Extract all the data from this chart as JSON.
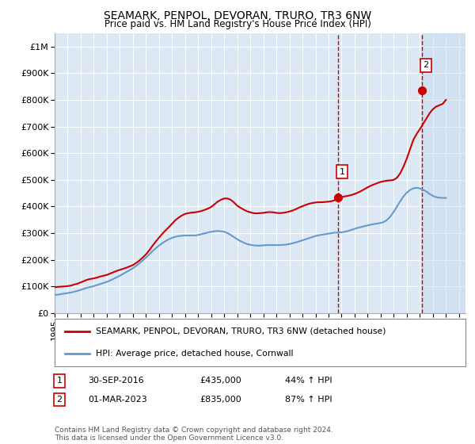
{
  "title": "SEAMARK, PENPOL, DEVORAN, TRURO, TR3 6NW",
  "subtitle": "Price paid vs. HM Land Registry's House Price Index (HPI)",
  "ylim": [
    0,
    1050000
  ],
  "xlim_start": 1995.0,
  "xlim_end": 2026.5,
  "yticks": [
    0,
    100000,
    200000,
    300000,
    400000,
    500000,
    600000,
    700000,
    800000,
    900000,
    1000000
  ],
  "ytick_labels": [
    "£0",
    "£100K",
    "£200K",
    "£300K",
    "£400K",
    "£500K",
    "£600K",
    "£700K",
    "£800K",
    "£900K",
    "£1M"
  ],
  "xticks": [
    1995,
    1996,
    1997,
    1998,
    1999,
    2000,
    2001,
    2002,
    2003,
    2004,
    2005,
    2006,
    2007,
    2008,
    2009,
    2010,
    2011,
    2012,
    2013,
    2014,
    2015,
    2016,
    2017,
    2018,
    2019,
    2020,
    2021,
    2022,
    2023,
    2024,
    2025,
    2026
  ],
  "red_line_color": "#cc0000",
  "blue_line_color": "#6699cc",
  "background_color": "#ffffff",
  "plot_bg_color": "#dce9f5",
  "shaded_region_color": "#c5d8ef",
  "marker1_x": 2016.75,
  "marker1_y": 435000,
  "marker1_label": "1",
  "marker1_date": "30-SEP-2016",
  "marker1_price": "£435,000",
  "marker1_hpi": "44% ↑ HPI",
  "marker2_x": 2023.17,
  "marker2_y": 835000,
  "marker2_label": "2",
  "marker2_date": "01-MAR-2023",
  "marker2_price": "£835,000",
  "marker2_hpi": "87% ↑ HPI",
  "legend_label_red": "SEAMARK, PENPOL, DEVORAN, TRURO, TR3 6NW (detached house)",
  "legend_label_blue": "HPI: Average price, detached house, Cornwall",
  "footer_text": "Contains HM Land Registry data © Crown copyright and database right 2024.\nThis data is licensed under the Open Government Licence v3.0.",
  "red_x": [
    1995.0,
    1995.25,
    1995.5,
    1995.75,
    1996.0,
    1996.25,
    1996.5,
    1996.75,
    1997.0,
    1997.25,
    1997.5,
    1997.75,
    1998.0,
    1998.25,
    1998.5,
    1998.75,
    1999.0,
    1999.25,
    1999.5,
    1999.75,
    2000.0,
    2000.25,
    2000.5,
    2000.75,
    2001.0,
    2001.25,
    2001.5,
    2001.75,
    2002.0,
    2002.25,
    2002.5,
    2002.75,
    2003.0,
    2003.25,
    2003.5,
    2003.75,
    2004.0,
    2004.25,
    2004.5,
    2004.75,
    2005.0,
    2005.25,
    2005.5,
    2005.75,
    2006.0,
    2006.25,
    2006.5,
    2006.75,
    2007.0,
    2007.25,
    2007.5,
    2007.75,
    2008.0,
    2008.25,
    2008.5,
    2008.75,
    2009.0,
    2009.25,
    2009.5,
    2009.75,
    2010.0,
    2010.25,
    2010.5,
    2010.75,
    2011.0,
    2011.25,
    2011.5,
    2011.75,
    2012.0,
    2012.25,
    2012.5,
    2012.75,
    2013.0,
    2013.25,
    2013.5,
    2013.75,
    2014.0,
    2014.25,
    2014.5,
    2014.75,
    2015.0,
    2015.25,
    2015.5,
    2015.75,
    2016.0,
    2016.25,
    2016.5,
    2016.75,
    2017.0,
    2017.25,
    2017.5,
    2017.75,
    2018.0,
    2018.25,
    2018.5,
    2018.75,
    2019.0,
    2019.25,
    2019.5,
    2019.75,
    2020.0,
    2020.25,
    2020.5,
    2020.75,
    2021.0,
    2021.25,
    2021.5,
    2021.75,
    2022.0,
    2022.25,
    2022.5,
    2022.75,
    2023.0,
    2023.25,
    2023.5,
    2023.75,
    2024.0,
    2024.25,
    2024.5,
    2024.75,
    2025.0
  ],
  "red_y": [
    97000,
    98000,
    99000,
    100000,
    101000,
    103000,
    107000,
    110000,
    115000,
    120000,
    125000,
    128000,
    130000,
    133000,
    137000,
    140000,
    143000,
    148000,
    153000,
    158000,
    162000,
    166000,
    170000,
    175000,
    180000,
    188000,
    197000,
    208000,
    220000,
    235000,
    252000,
    268000,
    283000,
    297000,
    310000,
    322000,
    335000,
    348000,
    358000,
    366000,
    372000,
    375000,
    377000,
    378000,
    380000,
    383000,
    387000,
    392000,
    398000,
    408000,
    418000,
    425000,
    430000,
    430000,
    425000,
    415000,
    403000,
    395000,
    388000,
    382000,
    378000,
    375000,
    374000,
    375000,
    376000,
    378000,
    379000,
    378000,
    376000,
    375000,
    376000,
    378000,
    381000,
    385000,
    390000,
    396000,
    401000,
    406000,
    410000,
    413000,
    415000,
    416000,
    416000,
    417000,
    418000,
    420000,
    424000,
    430000,
    435000,
    438000,
    440000,
    443000,
    447000,
    452000,
    458000,
    465000,
    472000,
    478000,
    483000,
    488000,
    492000,
    495000,
    497000,
    498000,
    500000,
    508000,
    525000,
    550000,
    580000,
    615000,
    650000,
    672000,
    690000,
    710000,
    730000,
    750000,
    765000,
    775000,
    780000,
    785000,
    800000
  ],
  "blue_x": [
    1995.0,
    1995.25,
    1995.5,
    1995.75,
    1996.0,
    1996.25,
    1996.5,
    1996.75,
    1997.0,
    1997.25,
    1997.5,
    1997.75,
    1998.0,
    1998.25,
    1998.5,
    1998.75,
    1999.0,
    1999.25,
    1999.5,
    1999.75,
    2000.0,
    2000.25,
    2000.5,
    2000.75,
    2001.0,
    2001.25,
    2001.5,
    2001.75,
    2002.0,
    2002.25,
    2002.5,
    2002.75,
    2003.0,
    2003.25,
    2003.5,
    2003.75,
    2004.0,
    2004.25,
    2004.5,
    2004.75,
    2005.0,
    2005.25,
    2005.5,
    2005.75,
    2006.0,
    2006.25,
    2006.5,
    2006.75,
    2007.0,
    2007.25,
    2007.5,
    2007.75,
    2008.0,
    2008.25,
    2008.5,
    2008.75,
    2009.0,
    2009.25,
    2009.5,
    2009.75,
    2010.0,
    2010.25,
    2010.5,
    2010.75,
    2011.0,
    2011.25,
    2011.5,
    2011.75,
    2012.0,
    2012.25,
    2012.5,
    2012.75,
    2013.0,
    2013.25,
    2013.5,
    2013.75,
    2014.0,
    2014.25,
    2014.5,
    2014.75,
    2015.0,
    2015.25,
    2015.5,
    2015.75,
    2016.0,
    2016.25,
    2016.5,
    2016.75,
    2017.0,
    2017.25,
    2017.5,
    2017.75,
    2018.0,
    2018.25,
    2018.5,
    2018.75,
    2019.0,
    2019.25,
    2019.5,
    2019.75,
    2020.0,
    2020.25,
    2020.5,
    2020.75,
    2021.0,
    2021.25,
    2021.5,
    2021.75,
    2022.0,
    2022.25,
    2022.5,
    2022.75,
    2023.0,
    2023.25,
    2023.5,
    2023.75,
    2024.0,
    2024.25,
    2024.5,
    2024.75,
    2025.0
  ],
  "blue_y": [
    68000,
    69000,
    71000,
    73000,
    75000,
    77000,
    80000,
    83000,
    87000,
    91000,
    95000,
    98000,
    101000,
    105000,
    109000,
    113000,
    117000,
    122000,
    128000,
    134000,
    140000,
    147000,
    154000,
    161000,
    168000,
    177000,
    187000,
    197000,
    208000,
    220000,
    232000,
    243000,
    253000,
    262000,
    270000,
    277000,
    282000,
    286000,
    289000,
    290000,
    291000,
    291000,
    291000,
    291000,
    293000,
    296000,
    299000,
    302000,
    305000,
    307000,
    308000,
    307000,
    305000,
    300000,
    293000,
    285000,
    277000,
    270000,
    264000,
    259000,
    256000,
    254000,
    253000,
    253000,
    254000,
    255000,
    255000,
    255000,
    255000,
    255000,
    256000,
    257000,
    259000,
    262000,
    265000,
    269000,
    273000,
    277000,
    281000,
    285000,
    289000,
    292000,
    294000,
    296000,
    298000,
    300000,
    302000,
    302000,
    303000,
    305000,
    308000,
    312000,
    316000,
    320000,
    323000,
    326000,
    329000,
    332000,
    334000,
    336000,
    338000,
    342000,
    350000,
    363000,
    380000,
    400000,
    420000,
    438000,
    452000,
    462000,
    468000,
    470000,
    468000,
    463000,
    456000,
    447000,
    440000,
    435000,
    433000,
    432000,
    432000
  ]
}
